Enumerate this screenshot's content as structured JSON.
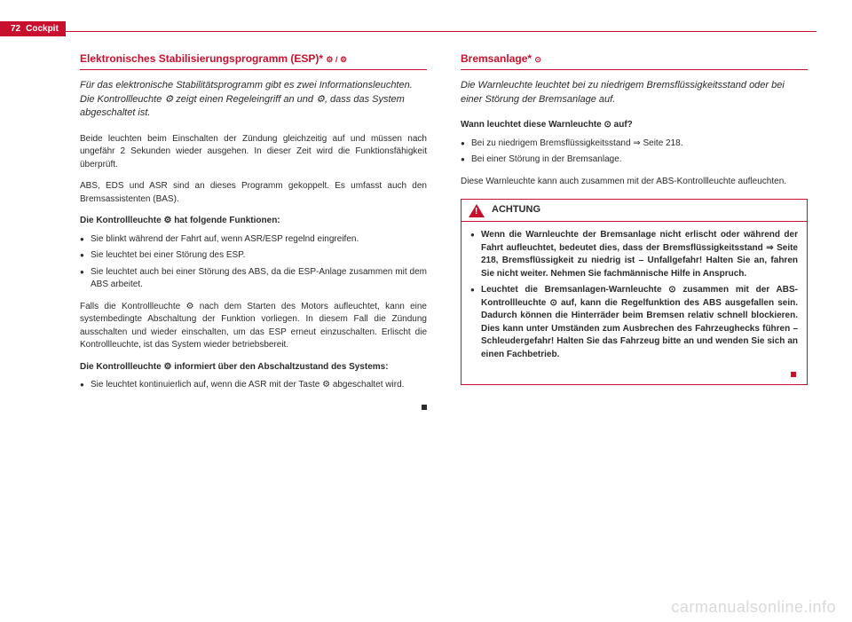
{
  "header": {
    "page_number": "72",
    "section": "Cockpit"
  },
  "left": {
    "title": "Elektronisches Stabilisierungsprogramm (ESP)* ",
    "title_icons": "⚙ / ⚙",
    "intro": "Für das elektronische Stabilitätsprogramm gibt es zwei Informationsleuchten. Die Kontrollleuchte ⚙ zeigt einen Regeleingriff an und ⚙, dass das System abgeschaltet ist.",
    "p1": "Beide leuchten beim Einschalten der Zündung gleichzeitig auf und müssen nach ungefähr 2 Sekunden wieder ausgehen. In dieser Zeit wird die Funktionsfähigkeit überprüft.",
    "p2": "ABS, EDS und ASR sind an dieses Programm gekoppelt. Es umfasst auch den Bremsassistenten (BAS).",
    "lead1": "Die Kontrollleuchte ⚙ hat folgende Funktionen:",
    "b1": "Sie blinkt während der Fahrt auf, wenn ASR/ESP regelnd eingreifen.",
    "b2": "Sie leuchtet bei einer Störung des ESP.",
    "b3": "Sie leuchtet auch bei einer Störung des ABS, da die ESP-Anlage zusammen mit dem ABS arbeitet.",
    "p3": "Falls die Kontrollleuchte ⚙ nach dem Starten des Motors aufleuchtet, kann eine systembedingte Abschaltung der Funktion vorliegen. In diesem Fall die Zündung ausschalten und wieder einschalten, um das ESP erneut einzuschalten. Erlischt die Kontrollleuchte, ist das System wieder betriebsbereit.",
    "lead2": "Die Kontrollleuchte ⚙ informiert über den Abschaltzustand des Systems:",
    "b4": "Sie leuchtet kontinuierlich auf, wenn die ASR mit der Taste ⚙ abgeschaltet wird."
  },
  "right": {
    "title": "Bremsanlage* ",
    "title_icon": "⊙",
    "intro": "Die Warnleuchte leuchtet bei zu niedrigem Bremsflüssigkeitsstand oder bei einer Störung der Bremsanlage auf.",
    "lead": "Wann leuchtet diese Warnleuchte ⊙ auf?",
    "b1": "Bei zu niedrigem Bremsflüssigkeitsstand ⇒ Seite 218.",
    "b2": "Bei einer Störung in der Bremsanlage.",
    "p1": "Diese Warnleuchte kann auch zusammen mit der ABS-Kontrollleuchte aufleuchten.",
    "warn_label": "ACHTUNG",
    "w1": "Wenn die Warnleuchte der Bremsanlage nicht erlischt oder während der Fahrt aufleuchtet, bedeutet dies, dass der Bremsflüssigkeitsstand ⇒ Seite 218, Bremsflüssigkeit zu niedrig ist – Unfallgefahr! Halten Sie an, fahren Sie nicht weiter. Nehmen Sie fachmännische Hilfe in Anspruch.",
    "w2": "Leuchtet die Bremsanlagen-Warnleuchte ⊙ zusammen mit der ABS-Kontrollleuchte ⊙ auf, kann die Regelfunktion des ABS ausgefallen sein. Dadurch können die Hinterräder beim Bremsen relativ schnell blockieren. Dies kann unter Umständen zum Ausbrechen des Fahrzeughecks führen – Schleudergefahr! Halten Sie das Fahrzeug bitte an und wenden Sie sich an einen Fachbetrieb."
  },
  "watermark": "carmanualsonline.info",
  "colors": {
    "accent": "#c8102e",
    "text": "#2b2b2b",
    "watermark": "#d9d9d9",
    "background": "#ffffff"
  }
}
